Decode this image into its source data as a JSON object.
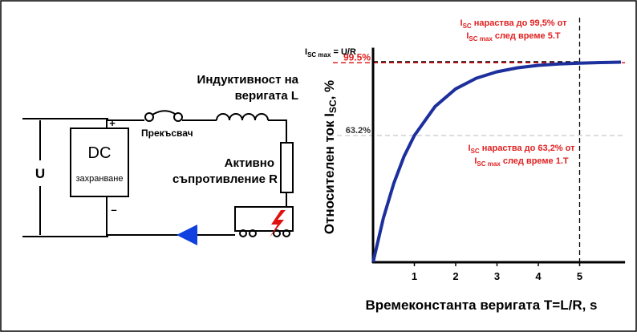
{
  "diagram": {
    "plus": "+",
    "minus": "–",
    "source": "DC",
    "source_sub": "захранване",
    "voltage": "U",
    "switch": "Прекъсвач",
    "inductance": [
      "Индуктивност на",
      "веригата L"
    ],
    "resistance": [
      "Активно",
      "съпротивление R"
    ]
  },
  "chart_data": {
    "type": "line",
    "x": [
      0,
      0.25,
      0.5,
      0.75,
      1,
      1.5,
      2,
      2.5,
      3,
      3.5,
      4,
      4.5,
      5,
      5.5,
      6
    ],
    "series": [
      {
        "color": "#1c2f9c",
        "values": [
          0,
          22.1,
          39.3,
          52.8,
          63.2,
          77.7,
          86.5,
          91.8,
          95.0,
          97.0,
          98.2,
          98.9,
          99.3,
          99.6,
          99.8
        ]
      }
    ],
    "xlim": [
      0,
      6.1
    ],
    "ylim": [
      0,
      107
    ],
    "xticks": [
      1,
      2,
      3,
      4,
      5
    ],
    "yticks": [
      {
        "value": 63.2,
        "label": "63.2%"
      },
      {
        "value": 99.5,
        "label": "99.5%"
      }
    ],
    "x_label": "Времеконстанта веригата T=L/R, s",
    "y_label": [
      "Относителен ток I",
      "SC",
      ", %"
    ],
    "max_label": {
      "value": 100,
      "parts": [
        "I",
        "SC max",
        " = U/R"
      ]
    },
    "annotations": [
      {
        "color": "#e02020",
        "lines": [
          [
            "I",
            "SC",
            " нараства до 99,5% от"
          ],
          [
            "I",
            "SC max",
            " след време 5.T"
          ]
        ]
      },
      {
        "color": "#e02020",
        "lines": [
          [
            "I",
            "SC",
            " нараства до 63,2% от"
          ],
          [
            "I",
            "SC max",
            " след време 1.T"
          ]
        ]
      }
    ]
  }
}
